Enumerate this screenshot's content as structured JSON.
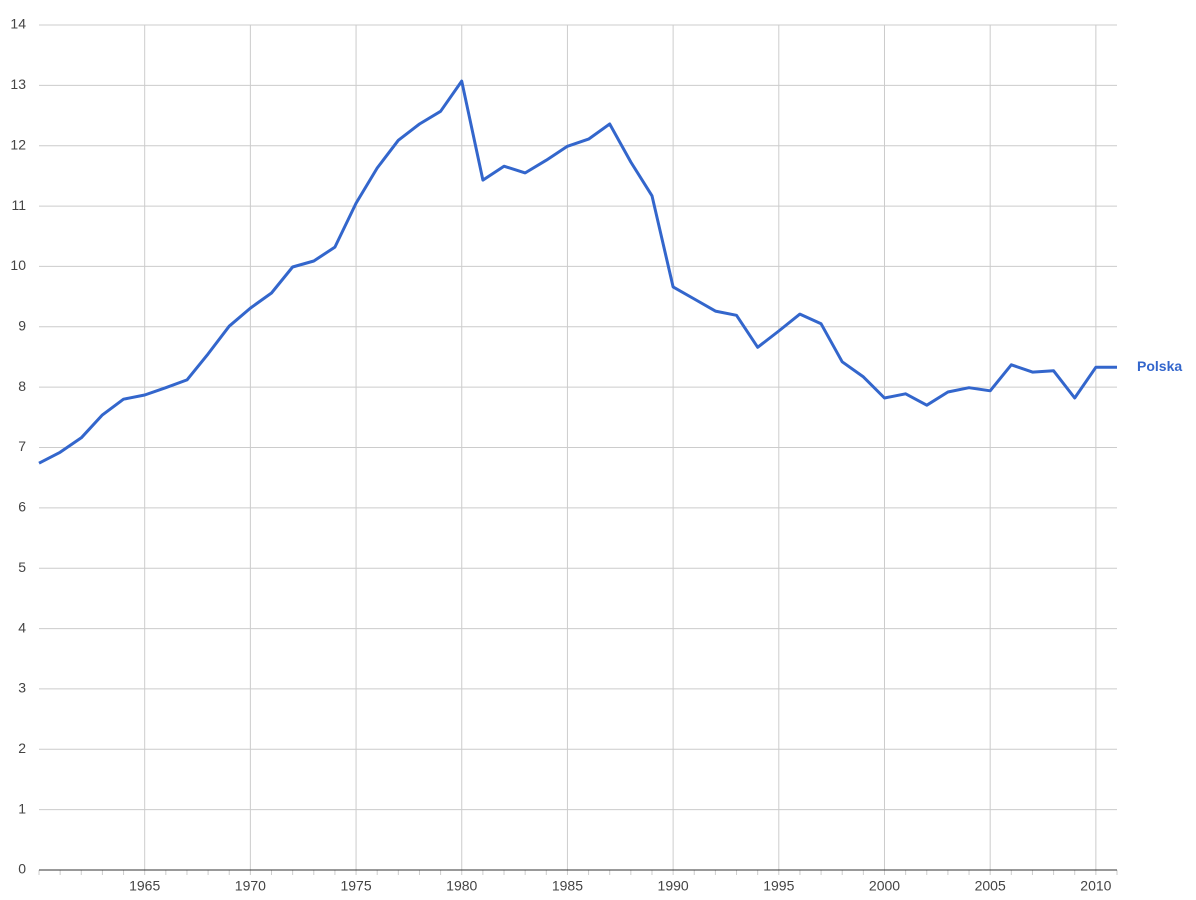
{
  "chart_data": {
    "type": "line",
    "x": [
      1960,
      1961,
      1962,
      1963,
      1964,
      1965,
      1966,
      1967,
      1968,
      1969,
      1970,
      1971,
      1972,
      1973,
      1974,
      1975,
      1976,
      1977,
      1978,
      1979,
      1980,
      1981,
      1982,
      1983,
      1984,
      1985,
      1986,
      1987,
      1988,
      1989,
      1990,
      1991,
      1992,
      1993,
      1994,
      1995,
      1996,
      1997,
      1998,
      1999,
      2000,
      2001,
      2002,
      2003,
      2004,
      2005,
      2006,
      2007,
      2008,
      2009,
      2010,
      2011
    ],
    "series": [
      {
        "name": "Polska",
        "color": "#3366cc",
        "values": [
          6.74,
          6.92,
          7.16,
          7.54,
          7.8,
          7.87,
          7.99,
          8.12,
          8.55,
          9.01,
          9.31,
          9.56,
          9.99,
          10.09,
          10.32,
          11.05,
          11.63,
          12.09,
          12.36,
          12.57,
          13.07,
          11.43,
          11.66,
          11.55,
          11.76,
          11.99,
          12.11,
          12.36,
          11.73,
          11.17,
          9.66,
          9.46,
          9.26,
          9.19,
          8.66,
          8.93,
          9.21,
          9.05,
          8.42,
          8.17,
          7.82,
          7.89,
          7.7,
          7.92,
          7.99,
          7.94,
          8.37,
          8.25,
          8.27,
          7.82,
          8.33,
          8.33
        ]
      }
    ],
    "xlim": [
      1960,
      2011
    ],
    "xticks": [
      1965,
      1970,
      1975,
      1980,
      1985,
      1990,
      1995,
      2000,
      2005,
      2010
    ],
    "ylim": [
      0,
      14
    ],
    "yticks": [
      0,
      1,
      2,
      3,
      4,
      5,
      6,
      7,
      8,
      9,
      10,
      11,
      12,
      13,
      14
    ],
    "grid": true
  }
}
